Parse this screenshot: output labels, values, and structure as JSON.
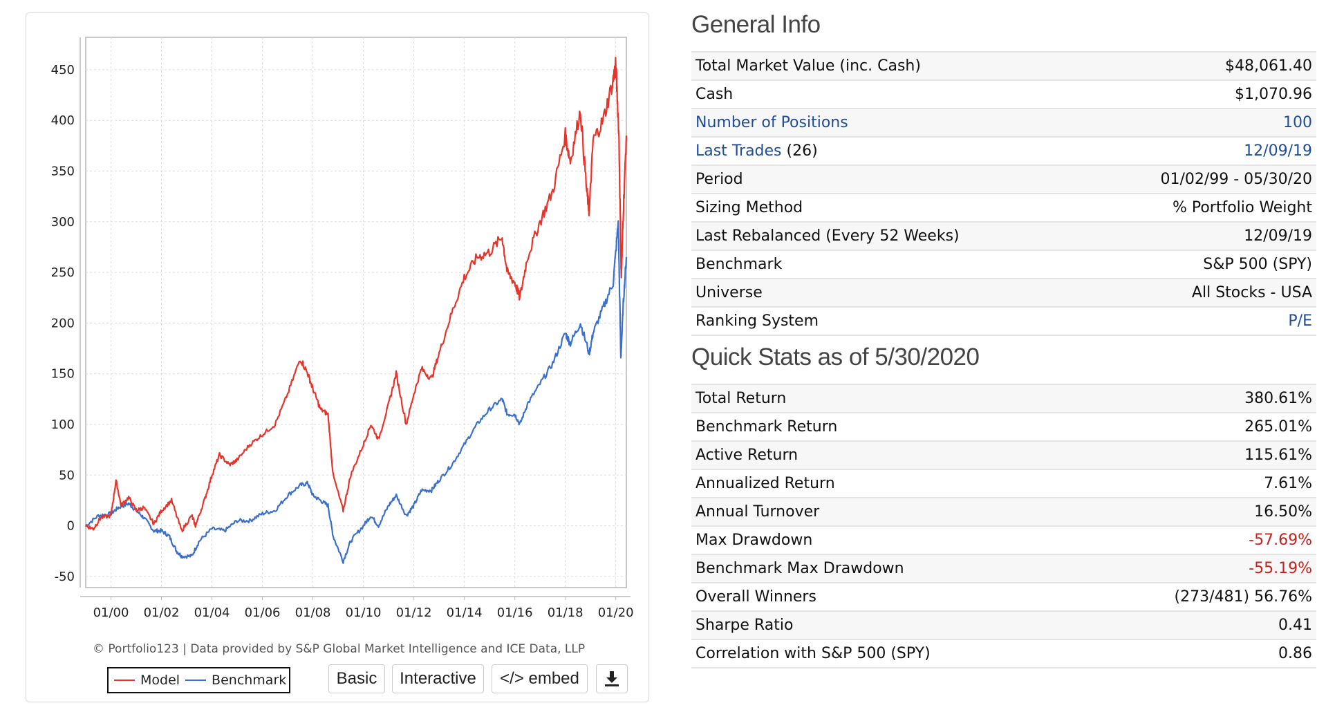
{
  "chart_data": {
    "type": "line",
    "title": "",
    "xlabel": "",
    "ylabel": "",
    "xlim": [
      1999.0,
      2020.42
    ],
    "ylim": [
      -61,
      482
    ],
    "grid": true,
    "legend_placement": "bottom-left",
    "y_ticks": [
      -50,
      0,
      50,
      100,
      150,
      200,
      250,
      300,
      350,
      400,
      450
    ],
    "y_tick_labels": [
      "-50",
      "0",
      "50",
      "100",
      "150",
      "200",
      "250",
      "300",
      "350",
      "400",
      "450"
    ],
    "x_ticks": [
      2000,
      2002,
      2004,
      2006,
      2008,
      2010,
      2012,
      2014,
      2016,
      2018,
      2020
    ],
    "x_tick_labels": [
      "01/00",
      "01/02",
      "01/04",
      "01/06",
      "01/08",
      "01/10",
      "01/12",
      "01/14",
      "01/16",
      "01/18",
      "01/20"
    ],
    "series": [
      {
        "name": "Model",
        "color": "#e8332a",
        "x": [
          1999.0,
          1999.3,
          1999.6,
          2000.0,
          2000.2,
          2000.4,
          2000.7,
          2001.0,
          2001.3,
          2001.7,
          2002.0,
          2002.4,
          2002.8,
          2003.2,
          2003.35,
          2003.7,
          2004.0,
          2004.3,
          2004.7,
          2005.0,
          2005.5,
          2006.0,
          2006.5,
          2007.0,
          2007.5,
          2007.8,
          2008.0,
          2008.3,
          2008.6,
          2008.8,
          2009.2,
          2009.5,
          2010.0,
          2010.3,
          2010.6,
          2011.0,
          2011.3,
          2011.7,
          2012.0,
          2012.3,
          2012.7,
          2013.0,
          2013.5,
          2014.0,
          2014.5,
          2015.0,
          2015.5,
          2015.7,
          2016.0,
          2016.2,
          2016.5,
          2017.0,
          2017.5,
          2018.0,
          2018.2,
          2018.6,
          2018.85,
          2018.95,
          2019.1,
          2019.5,
          2019.9,
          2020.0,
          2020.12,
          2020.22,
          2020.3,
          2020.42
        ],
        "values": [
          0,
          -3,
          8,
          10,
          45,
          20,
          28,
          15,
          18,
          2,
          15,
          25,
          -5,
          10,
          0,
          25,
          50,
          70,
          60,
          65,
          80,
          90,
          100,
          130,
          165,
          150,
          135,
          115,
          110,
          50,
          15,
          50,
          80,
          100,
          85,
          120,
          150,
          100,
          130,
          155,
          145,
          170,
          210,
          245,
          265,
          270,
          285,
          250,
          240,
          225,
          265,
          300,
          330,
          385,
          360,
          410,
          330,
          310,
          380,
          400,
          440,
          455,
          390,
          245,
          310,
          385
        ]
      },
      {
        "name": "Benchmark",
        "color": "#3b6fce",
        "x": [
          1999.0,
          1999.5,
          2000.0,
          2000.3,
          2000.7,
          2001.0,
          2001.3,
          2001.7,
          2002.0,
          2002.3,
          2002.6,
          2002.8,
          2003.2,
          2003.5,
          2004.0,
          2004.5,
          2005.0,
          2005.5,
          2006.0,
          2006.5,
          2007.0,
          2007.5,
          2007.8,
          2008.0,
          2008.3,
          2008.6,
          2008.8,
          2009.2,
          2009.5,
          2010.0,
          2010.3,
          2010.6,
          2011.0,
          2011.3,
          2011.7,
          2012.0,
          2012.3,
          2012.7,
          2013.0,
          2013.5,
          2014.0,
          2014.5,
          2015.0,
          2015.5,
          2015.7,
          2016.0,
          2016.2,
          2016.5,
          2017.0,
          2017.5,
          2018.0,
          2018.2,
          2018.6,
          2018.95,
          2019.1,
          2019.5,
          2019.9,
          2020.1,
          2020.2,
          2020.3,
          2020.42
        ],
        "values": [
          0,
          10,
          12,
          18,
          22,
          15,
          8,
          -5,
          -5,
          -10,
          -25,
          -30,
          -30,
          -15,
          -3,
          -5,
          5,
          5,
          12,
          15,
          30,
          40,
          42,
          30,
          25,
          20,
          -10,
          -35,
          -15,
          0,
          10,
          0,
          20,
          30,
          10,
          20,
          35,
          35,
          45,
          60,
          80,
          100,
          115,
          125,
          110,
          110,
          100,
          120,
          140,
          160,
          190,
          180,
          200,
          170,
          190,
          215,
          240,
          300,
          165,
          220,
          265
        ]
      }
    ]
  },
  "footer": {
    "copyright": "© Portfolio123 | Data provided by S&P Global Market Intelligence and ICE Data, LLP",
    "legend_model": "Model",
    "legend_benchmark": "Benchmark",
    "btn_basic": "Basic",
    "btn_interactive": "Interactive",
    "btn_embed": "</> embed",
    "download_icon": "download-icon"
  },
  "general_info": {
    "title": "General Info",
    "rows": [
      {
        "label": "Total Market Value (inc. Cash)",
        "value": "$48,061.40"
      },
      {
        "label": "Cash",
        "value": "$1,070.96"
      },
      {
        "label": "Number of Positions",
        "value": "100"
      },
      {
        "label": "Last Trades",
        "label_suffix": " (26)",
        "value": "12/09/19"
      },
      {
        "label": "Period",
        "value": "01/02/99 - 05/30/20"
      },
      {
        "label": "Sizing Method",
        "value": "% Portfolio Weight"
      },
      {
        "label": "Last Rebalanced (Every 52 Weeks)",
        "value": "12/09/19"
      },
      {
        "label": "Benchmark",
        "value": "S&P 500 (SPY)"
      },
      {
        "label": "Universe",
        "value": "All Stocks - USA"
      },
      {
        "label": "Ranking System",
        "value": "P/E"
      }
    ]
  },
  "quick_stats": {
    "title": "Quick Stats as of 5/30/2020",
    "rows": [
      {
        "label": "Total Return",
        "value": "380.61%"
      },
      {
        "label": "Benchmark Return",
        "value": "265.01%"
      },
      {
        "label": "Active Return",
        "value": "115.61%"
      },
      {
        "label": "Annualized Return",
        "value": "7.61%"
      },
      {
        "label": "Annual Turnover",
        "value": "16.50%"
      },
      {
        "label": "Max Drawdown",
        "value": "-57.69%"
      },
      {
        "label": "Benchmark Max Drawdown",
        "value": "-55.19%"
      },
      {
        "label": "Overall Winners",
        "value": "(273/481) 56.76%"
      },
      {
        "label": "Sharpe Ratio",
        "value": "0.41"
      },
      {
        "label": "Correlation with S&P 500 (SPY)",
        "value": "0.86"
      }
    ]
  },
  "colors": {
    "link": "#1f4d9c",
    "negative": "#c8201b"
  }
}
